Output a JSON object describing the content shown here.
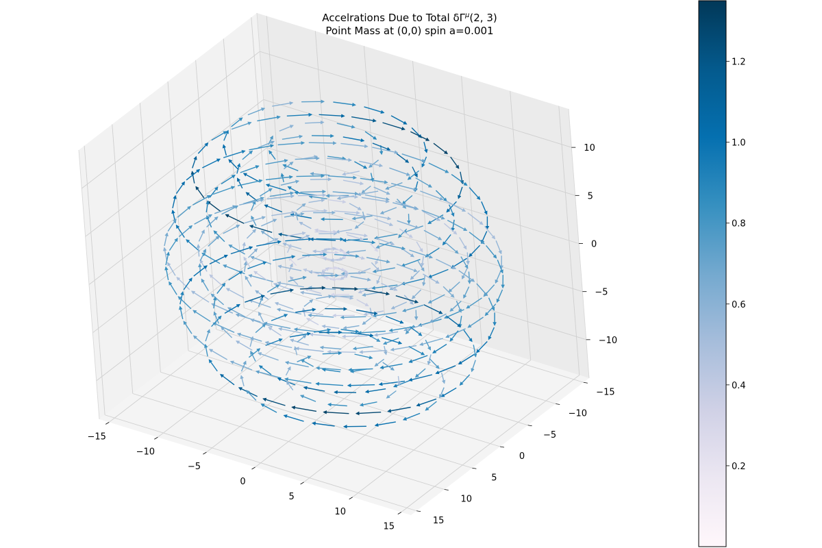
{
  "chart_data": {
    "type": "quiver3d",
    "title_line1": "Accelrations Due to Total δΓ",
    "title_sup": "μ",
    "title_args": "(2, 3)",
    "title_line2": "Point Mass at (0,0) spin a=0.001",
    "xlim": [
      -16,
      16
    ],
    "ylim": [
      -16,
      16
    ],
    "zlim": [
      -14,
      14
    ],
    "x_ticks": [
      "−15",
      "−10",
      "−5",
      "0",
      "5",
      "10",
      "15"
    ],
    "x_tick_values": [
      -15,
      -10,
      -5,
      0,
      5,
      10,
      15
    ],
    "y_ticks": [
      "−15",
      "−10",
      "−5",
      "0",
      "5",
      "10",
      "15"
    ],
    "y_tick_values": [
      -15,
      -10,
      -5,
      0,
      5,
      10,
      15
    ],
    "z_ticks": [
      "−10",
      "−5",
      "0",
      "5",
      "10"
    ],
    "z_tick_values": [
      -10,
      -5,
      0,
      5,
      10
    ],
    "grid": true,
    "colormap": "PuBu",
    "colormap_stops": [
      "#fff7fb",
      "#ece7f2",
      "#d0d1e6",
      "#a6bddb",
      "#74a9cf",
      "#3690c0",
      "#0570b0",
      "#045a8d",
      "#023858"
    ],
    "colorbar_range": [
      0.0,
      1.35
    ],
    "colorbar_ticks": [
      "0.2",
      "0.4",
      "0.6",
      "0.8",
      "1.0",
      "1.2"
    ],
    "colorbar_tick_values": [
      0.2,
      0.4,
      0.6,
      0.8,
      1.0,
      1.2
    ],
    "field": {
      "description": "tangential accelerations on concentric rings at several heights",
      "shells": [
        {
          "z": 12,
          "radii": [
            5,
            9
          ],
          "magnitude": 1.1
        },
        {
          "z": 9,
          "radii": [
            4,
            8,
            12
          ],
          "magnitude": 1.2
        },
        {
          "z": 5,
          "radii": [
            3,
            7,
            11,
            14
          ],
          "magnitude": 0.9
        },
        {
          "z": 1,
          "radii": [
            1,
            4,
            8,
            12,
            15
          ],
          "magnitude": 0.7
        },
        {
          "z": -1,
          "radii": [
            1,
            4,
            8,
            12,
            15
          ],
          "magnitude": 0.7
        },
        {
          "z": -5,
          "radii": [
            3,
            7,
            11,
            14
          ],
          "magnitude": 0.9
        },
        {
          "z": -9,
          "radii": [
            4,
            8,
            12
          ],
          "magnitude": 1.2
        },
        {
          "z": -12,
          "radii": [
            5,
            9
          ],
          "magnitude": 1.1
        }
      ]
    }
  }
}
